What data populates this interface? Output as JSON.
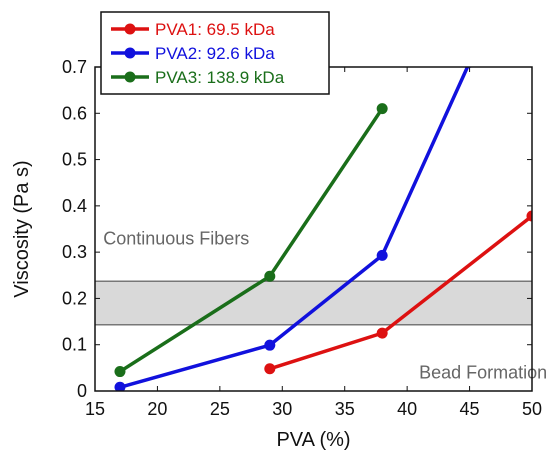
{
  "chart_data": {
    "type": "line",
    "xlabel": "PVA (%)",
    "ylabel": "Viscosity (Pa s)",
    "xlim": [
      15,
      50
    ],
    "ylim": [
      0,
      0.7
    ],
    "xticks": [
      "15",
      "20",
      "25",
      "30",
      "35",
      "40",
      "45",
      "50"
    ],
    "yticks": [
      "0",
      "0.1",
      "0.2",
      "0.3",
      "0.4",
      "0.5",
      "0.6",
      "0.7"
    ],
    "grid": false,
    "legend": "top-left",
    "series": [
      {
        "name": "PVA1: 69.5 kDa",
        "color": "#dd1111",
        "x": [
          29,
          38,
          50
        ],
        "y": [
          0.048,
          0.125,
          0.378
        ]
      },
      {
        "name": "PVA2: 92.6 kDa",
        "color": "#1111dd",
        "x": [
          17,
          29,
          38,
          45
        ],
        "y": [
          0.008,
          0.099,
          0.293,
          0.71
        ]
      },
      {
        "name": "PVA3: 138.9 kDa",
        "color": "#1a6e1a",
        "x": [
          17,
          29,
          38
        ],
        "y": [
          0.042,
          0.248,
          0.61
        ]
      }
    ],
    "band": {
      "y0": 0.143,
      "y1": 0.237,
      "color": "#d9d9d9",
      "edge": "#777777"
    },
    "annotations": [
      {
        "text": "Continuous Fibers",
        "x": 15.5,
        "y": 0.33
      },
      {
        "text": "Bead Formation",
        "x": 40.8,
        "y": 0.04
      }
    ]
  }
}
